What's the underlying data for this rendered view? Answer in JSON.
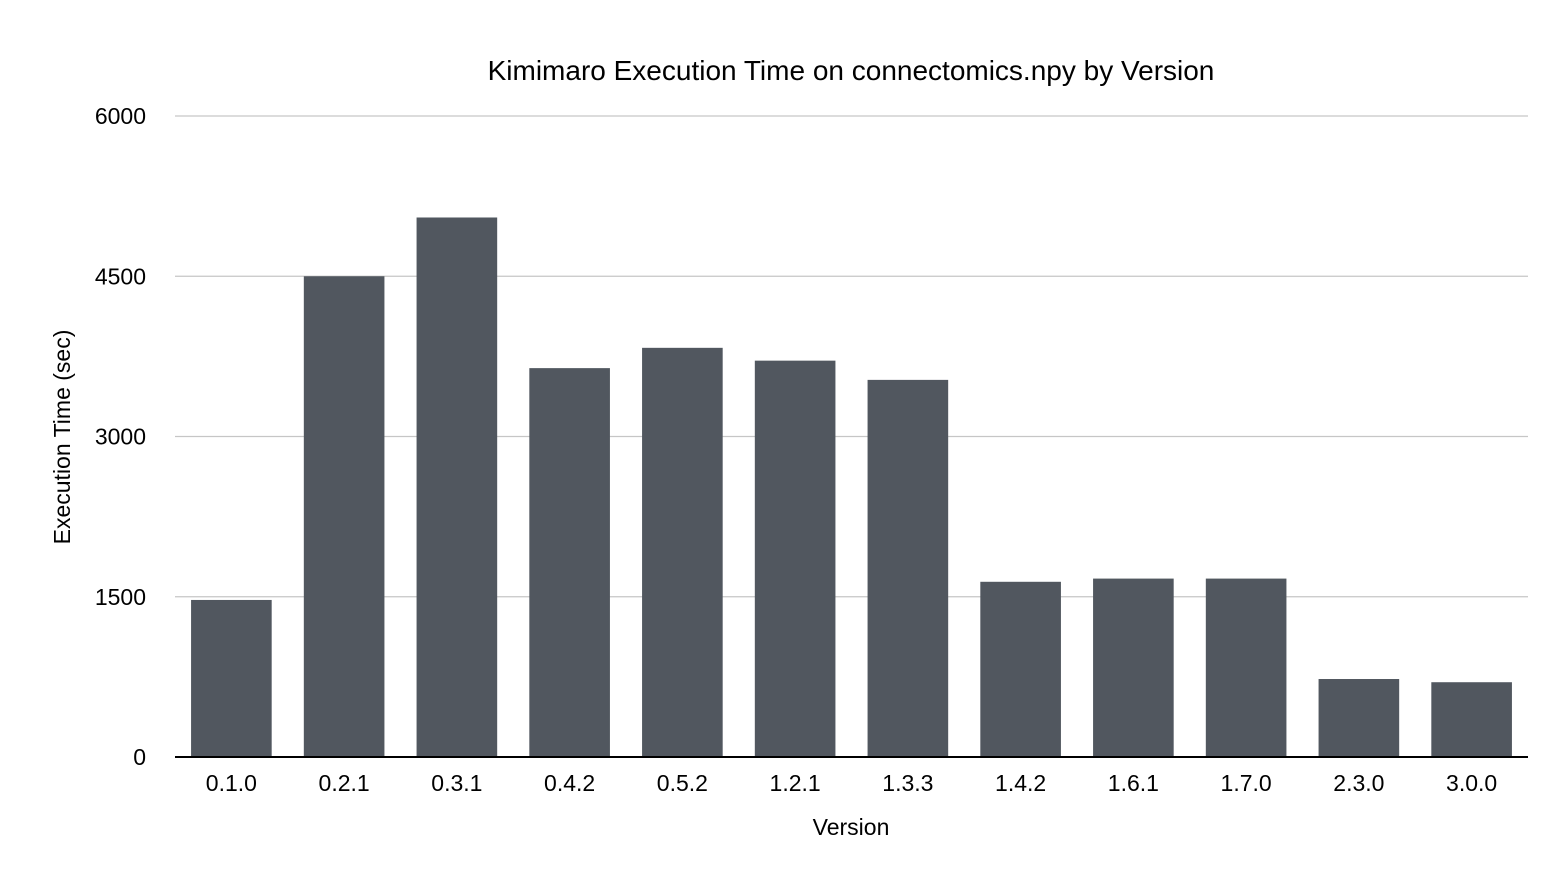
{
  "chart_data": {
    "type": "bar",
    "title": "Kimimaro Execution Time on connectomics.npy by Version",
    "xlabel": "Version",
    "ylabel": "Execution Time (sec)",
    "categories": [
      "0.1.0",
      "0.2.1",
      "0.3.1",
      "0.4.2",
      "0.5.2",
      "1.2.1",
      "1.3.3",
      "1.4.2",
      "1.6.1",
      "1.7.0",
      "2.3.0",
      "3.0.0"
    ],
    "values": [
      1470,
      4500,
      5050,
      3640,
      3830,
      3710,
      3530,
      1640,
      1670,
      1670,
      730,
      700
    ],
    "ylim": [
      0,
      6000
    ],
    "yticks": [
      0,
      1500,
      3000,
      4500,
      6000
    ],
    "grid": true,
    "legend": "none",
    "bar_color": "#51575f",
    "grid_color": "#c6c6c6",
    "axis_color": "#000000"
  }
}
